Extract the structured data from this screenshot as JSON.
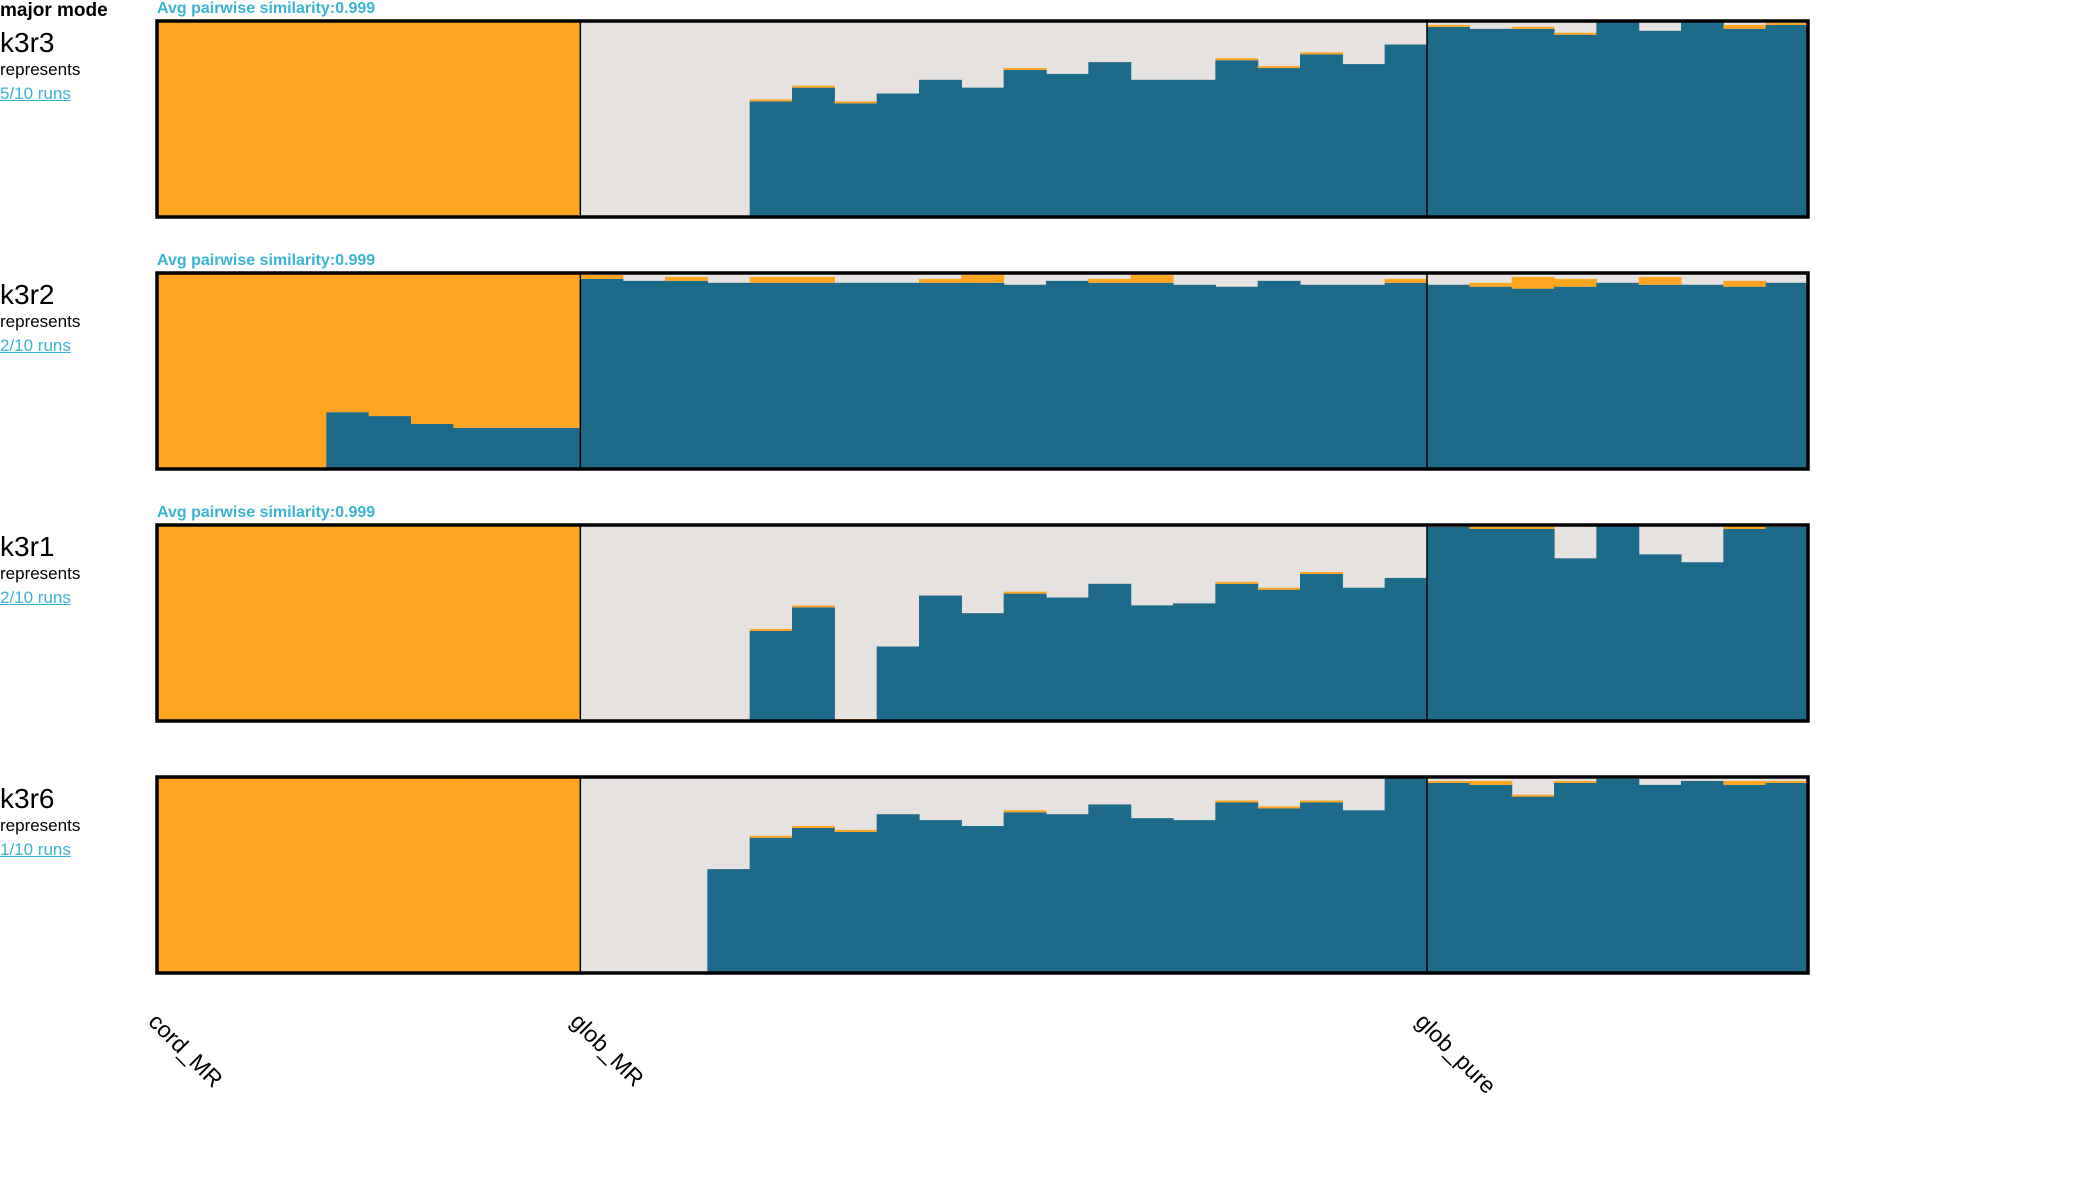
{
  "header": {
    "title": "major mode"
  },
  "colors": {
    "orange": "#ffa51f",
    "blue": "#1d6a8b",
    "grey": "#e6e2df",
    "link": "#3ab3d6"
  },
  "chart_data": {
    "type": "bar",
    "stacked": true,
    "populations": [
      {
        "name": "cord_MR",
        "count": 10
      },
      {
        "name": "glob_MR",
        "count": 20
      },
      {
        "name": "glob_pure",
        "count": 9
      }
    ],
    "rows": [
      {
        "name": "k3r3",
        "represents": "represents",
        "runs": "5/10 runs",
        "similarity": "Avg pairwise similarity:0.999",
        "blue": [
          0,
          0,
          0,
          0,
          0,
          0,
          0,
          0,
          0,
          0,
          0,
          0,
          0,
          0,
          0.59,
          0.66,
          0.58,
          0.63,
          0.7,
          0.66,
          0.75,
          0.73,
          0.79,
          0.7,
          0.7,
          0.8,
          0.76,
          0.83,
          0.78,
          0.88,
          0.97,
          0.96,
          0.96,
          0.93,
          1.0,
          0.95,
          1.0,
          0.96,
          0.98
        ],
        "orange": [
          1,
          1,
          1,
          1,
          1,
          1,
          1,
          1,
          1,
          1,
          0,
          0,
          0,
          0,
          0.01,
          0.01,
          0.01,
          0,
          0,
          0,
          0.01,
          0,
          0,
          0,
          0,
          0.01,
          0.01,
          0.01,
          0,
          0,
          0.01,
          0,
          0.01,
          0.01,
          0,
          0,
          0,
          0.02,
          0.01
        ]
      },
      {
        "name": "k3r2",
        "represents": "represents",
        "runs": "2/10 runs",
        "similarity": "Avg pairwise similarity:0.999",
        "blue": [
          0,
          0,
          0,
          0,
          0.29,
          0.27,
          0.23,
          0.21,
          0.21,
          0.21,
          0.97,
          0.96,
          0.96,
          0.95,
          0.95,
          0.95,
          0.95,
          0.95,
          0.95,
          0.95,
          0.94,
          0.96,
          0.95,
          0.95,
          0.94,
          0.93,
          0.96,
          0.94,
          0.94,
          0.95,
          0.94,
          0.93,
          0.92,
          0.93,
          0.95,
          0.94,
          0.94,
          0.93,
          0.95
        ],
        "orange": [
          1,
          1,
          1,
          1,
          0.71,
          0.73,
          0.77,
          0.79,
          0.79,
          0.79,
          0.02,
          0,
          0.02,
          0,
          0.03,
          0.03,
          0,
          0,
          0.02,
          0.04,
          0,
          0,
          0.02,
          0.04,
          0,
          0,
          0,
          0,
          0,
          0.02,
          0,
          0.02,
          0.06,
          0.04,
          0,
          0.04,
          0,
          0.03,
          0
        ]
      },
      {
        "name": "k3r1",
        "represents": "represents",
        "runs": "2/10 runs",
        "similarity": "Avg pairwise similarity:0.999",
        "blue": [
          0,
          0,
          0,
          0,
          0,
          0,
          0,
          0,
          0,
          0,
          0,
          0,
          0,
          0,
          0.46,
          0.58,
          0,
          0.38,
          0.64,
          0.55,
          0.65,
          0.63,
          0.7,
          0.59,
          0.6,
          0.7,
          0.67,
          0.75,
          0.68,
          0.73,
          0.99,
          0.98,
          0.98,
          0.83,
          1.0,
          0.85,
          0.81,
          0.98,
          0.99
        ],
        "orange": [
          1,
          1,
          1,
          1,
          1,
          1,
          1,
          1,
          1,
          1,
          0,
          0,
          0,
          0,
          0.01,
          0.01,
          0.01,
          0,
          0,
          0,
          0.01,
          0,
          0,
          0,
          0,
          0.01,
          0.01,
          0.01,
          0,
          0,
          0.01,
          0.01,
          0.01,
          0,
          0,
          0,
          0,
          0.02,
          0.01
        ]
      },
      {
        "name": "k3r6",
        "represents": "represents",
        "runs": "1/10 runs",
        "similarity": "",
        "blue": [
          0,
          0,
          0,
          0,
          0,
          0,
          0,
          0,
          0,
          0,
          0,
          0,
          0,
          0.53,
          0.69,
          0.74,
          0.72,
          0.81,
          0.78,
          0.75,
          0.82,
          0.81,
          0.86,
          0.79,
          0.78,
          0.87,
          0.84,
          0.87,
          0.83,
          1.0,
          0.97,
          0.96,
          0.9,
          0.97,
          0.99,
          0.96,
          0.98,
          0.96,
          0.97
        ],
        "orange": [
          1,
          1,
          1,
          1,
          1,
          1,
          1,
          1,
          1,
          1,
          0,
          0,
          0,
          0,
          0.01,
          0.01,
          0.01,
          0,
          0,
          0,
          0.01,
          0,
          0,
          0,
          0,
          0.01,
          0.01,
          0.01,
          0,
          0,
          0.01,
          0.02,
          0.01,
          0.01,
          0,
          0,
          0,
          0.02,
          0.01
        ]
      }
    ]
  }
}
